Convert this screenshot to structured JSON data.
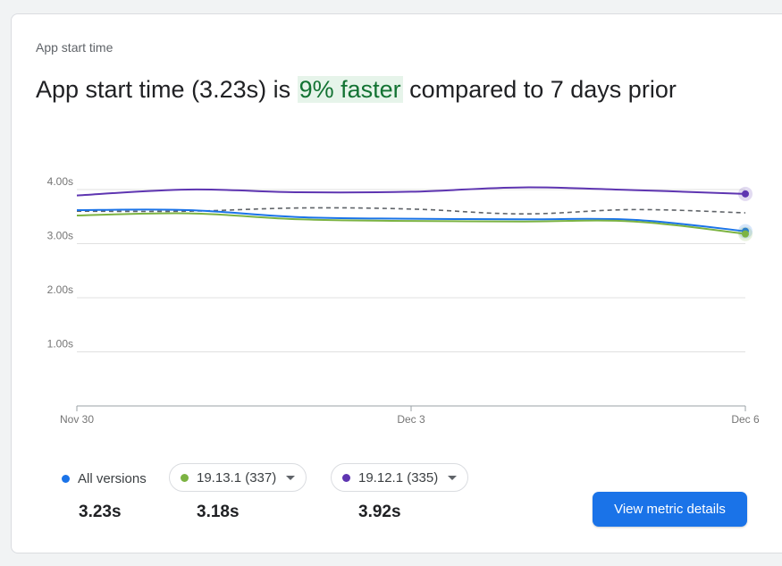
{
  "card": {
    "label": "App start time",
    "headline_pre": "App start time (3.23s) is ",
    "headline_highlight": "9% faster",
    "headline_post": " compared to 7 days prior"
  },
  "legend": [
    {
      "label": "All versions",
      "value": "3.23s",
      "color": "#1a73e8",
      "dropdown": false
    },
    {
      "label": "19.13.1 (337)",
      "value": "3.18s",
      "color": "#7cb342",
      "dropdown": true
    },
    {
      "label": "19.12.1 (335)",
      "value": "3.92s",
      "color": "#5e35b1",
      "dropdown": true
    }
  ],
  "button": {
    "label": "View metric details"
  },
  "chart_data": {
    "type": "line",
    "x": [
      0,
      1,
      2,
      3,
      4,
      5,
      6
    ],
    "x_tick_labels": [
      {
        "x": 0,
        "label": "Nov 30"
      },
      {
        "x": 3,
        "label": "Dec 3"
      },
      {
        "x": 6,
        "label": "Dec 6"
      }
    ],
    "y_ticks": [
      1,
      2,
      3,
      4
    ],
    "y_tick_labels": [
      "1.00s",
      "2.00s",
      "3.00s",
      "4.00s"
    ],
    "ylim": [
      0,
      4.5
    ],
    "grid": true,
    "series": [
      {
        "name": "19.12.1 (335)",
        "color": "#5e35b1",
        "style": "solid",
        "values": [
          3.89,
          4.0,
          3.95,
          3.96,
          4.04,
          3.99,
          3.92
        ]
      },
      {
        "name": "All versions",
        "color": "#1a73e8",
        "style": "solid",
        "values": [
          3.62,
          3.62,
          3.49,
          3.46,
          3.45,
          3.44,
          3.23
        ]
      },
      {
        "name": "19.13.1 (337)",
        "color": "#7cb342",
        "style": "solid",
        "values": [
          3.52,
          3.56,
          3.45,
          3.42,
          3.41,
          3.41,
          3.18
        ]
      },
      {
        "name": "",
        "color": "#5f6368",
        "style": "dashed",
        "values": [
          3.6,
          3.6,
          3.66,
          3.64,
          3.55,
          3.63,
          3.57
        ]
      }
    ]
  }
}
